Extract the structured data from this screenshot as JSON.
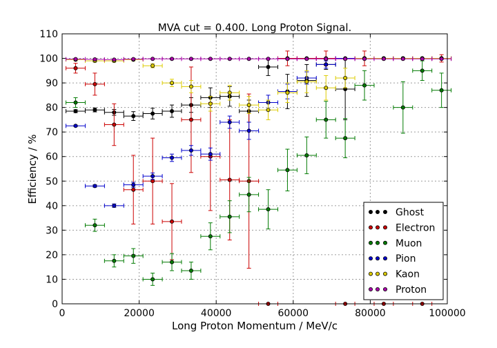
{
  "chart_data": {
    "type": "scatter",
    "title": "MVA cut = 0.400. Long Proton Signal.",
    "xlabel": "Long Proton Momentum / MeV/c",
    "ylabel": "Efficiency / %",
    "xlim": [
      0,
      100000
    ],
    "ylim": [
      0,
      110
    ],
    "x_ticks": [
      "0",
      "20000",
      "40000",
      "60000",
      "80000",
      "100000"
    ],
    "y_ticks": [
      "0",
      "10",
      "20",
      "30",
      "40",
      "50",
      "60",
      "70",
      "80",
      "90",
      "100",
      "110"
    ],
    "grid": true,
    "legend_position": "bottom-right",
    "x_bin_half_width": 2500,
    "series": [
      {
        "name": "Ghost",
        "color": "#000000",
        "points": [
          {
            "x": 3500,
            "y": 78.5,
            "err": 0.6
          },
          {
            "x": 8500,
            "y": 79,
            "err": 0.8
          },
          {
            "x": 13500,
            "y": 78,
            "err": 1.2
          },
          {
            "x": 18500,
            "y": 76.5,
            "err": 1.8
          },
          {
            "x": 23500,
            "y": 77.5,
            "err": 2.2
          },
          {
            "x": 28500,
            "y": 78.5,
            "err": 2.5
          },
          {
            "x": 33500,
            "y": 81,
            "err": 3
          },
          {
            "x": 38500,
            "y": 84,
            "err": 4
          },
          {
            "x": 43500,
            "y": 84.5,
            "err": 4
          },
          {
            "x": 48500,
            "y": 78.5,
            "err": 4.5
          },
          {
            "x": 53500,
            "y": 96.5,
            "err": 3.5
          },
          {
            "x": 58500,
            "y": 86.5,
            "err": 7
          },
          {
            "x": 63500,
            "y": 91,
            "err": 6.5
          },
          {
            "x": 68500,
            "y": 97.5,
            "err": 2
          },
          {
            "x": 73500,
            "y": 87.5,
            "err": 12.5
          },
          {
            "x": 78500,
            "y": 100,
            "err": 0
          },
          {
            "x": 83500,
            "y": 100,
            "err": 0
          },
          {
            "x": 88500,
            "y": 100,
            "err": 0
          },
          {
            "x": 93500,
            "y": 100,
            "err": 0
          },
          {
            "x": 98500,
            "y": 100,
            "err": 0
          }
        ]
      },
      {
        "name": "Electron",
        "color": "#cc0000",
        "points": [
          {
            "x": 3500,
            "y": 96,
            "err": 2
          },
          {
            "x": 8500,
            "y": 89.5,
            "err": 4.5
          },
          {
            "x": 13500,
            "y": 73,
            "err": 8.5
          },
          {
            "x": 18500,
            "y": 46.5,
            "err": 14
          },
          {
            "x": 23500,
            "y": 50,
            "err": 17.5
          },
          {
            "x": 28500,
            "y": 33.5,
            "err": 15.5
          },
          {
            "x": 33500,
            "y": 75,
            "err": 21.5
          },
          {
            "x": 38500,
            "y": 60,
            "err": 22
          },
          {
            "x": 43500,
            "y": 50.5,
            "err": 24.5
          },
          {
            "x": 48500,
            "y": 50,
            "err": 35.5
          },
          {
            "x": 53500,
            "y": 0,
            "err": 0
          },
          {
            "x": 58500,
            "y": 100,
            "err": 3
          },
          {
            "x": 63500,
            "y": 100,
            "err": 0
          },
          {
            "x": 68500,
            "y": 100,
            "err": 3
          },
          {
            "x": 73500,
            "y": 0,
            "err": 0
          },
          {
            "x": 78500,
            "y": 100,
            "err": 3
          },
          {
            "x": 83500,
            "y": 0,
            "err": 0
          },
          {
            "x": 88500,
            "y": 100,
            "err": 0
          },
          {
            "x": 93500,
            "y": 0,
            "err": 0
          },
          {
            "x": 98500,
            "y": 100,
            "err": 1.5
          }
        ]
      },
      {
        "name": "Muon",
        "color": "#007a00",
        "points": [
          {
            "x": 3500,
            "y": 82,
            "err": 2
          },
          {
            "x": 8500,
            "y": 32,
            "err": 2.5
          },
          {
            "x": 13500,
            "y": 17.5,
            "err": 2.5
          },
          {
            "x": 18500,
            "y": 19.5,
            "err": 3
          },
          {
            "x": 23500,
            "y": 10,
            "err": 2.5
          },
          {
            "x": 28500,
            "y": 17,
            "err": 3.5
          },
          {
            "x": 33500,
            "y": 13.5,
            "err": 3.5
          },
          {
            "x": 38500,
            "y": 27.5,
            "err": 5.5
          },
          {
            "x": 43500,
            "y": 35.5,
            "err": 6.5
          },
          {
            "x": 48500,
            "y": 44.5,
            "err": 7
          },
          {
            "x": 53500,
            "y": 38.5,
            "err": 8
          },
          {
            "x": 58500,
            "y": 54.5,
            "err": 8.5
          },
          {
            "x": 63500,
            "y": 60.5,
            "err": 7.5
          },
          {
            "x": 68500,
            "y": 75,
            "err": 7.5
          },
          {
            "x": 73500,
            "y": 67.5,
            "err": 8
          },
          {
            "x": 78500,
            "y": 89,
            "err": 6
          },
          {
            "x": 88500,
            "y": 80,
            "err": 10.5
          },
          {
            "x": 93500,
            "y": 95,
            "err": 4
          },
          {
            "x": 98500,
            "y": 87,
            "err": 7
          }
        ]
      },
      {
        "name": "Pion",
        "color": "#0000cc",
        "points": [
          {
            "x": 3500,
            "y": 72.5,
            "err": 0.3
          },
          {
            "x": 8500,
            "y": 48,
            "err": 0.5
          },
          {
            "x": 13500,
            "y": 40,
            "err": 0.7
          },
          {
            "x": 18500,
            "y": 48.5,
            "err": 1
          },
          {
            "x": 23500,
            "y": 52,
            "err": 1.3
          },
          {
            "x": 28500,
            "y": 59.5,
            "err": 1.5
          },
          {
            "x": 33500,
            "y": 62.5,
            "err": 2
          },
          {
            "x": 38500,
            "y": 61,
            "err": 2.5
          },
          {
            "x": 43500,
            "y": 74,
            "err": 2.5
          },
          {
            "x": 48500,
            "y": 70.5,
            "err": 3.5
          },
          {
            "x": 53500,
            "y": 82,
            "err": 3
          },
          {
            "x": 58500,
            "y": 86.5,
            "err": 3
          },
          {
            "x": 63500,
            "y": 92,
            "err": 2.5
          },
          {
            "x": 68500,
            "y": 97.5,
            "err": 1.5
          },
          {
            "x": 73500,
            "y": 100,
            "err": 0
          },
          {
            "x": 78500,
            "y": 100,
            "err": 0
          },
          {
            "x": 83500,
            "y": 100,
            "err": 0
          },
          {
            "x": 88500,
            "y": 100,
            "err": 0
          },
          {
            "x": 93500,
            "y": 100,
            "err": 0
          },
          {
            "x": 98500,
            "y": 100,
            "err": 0
          }
        ]
      },
      {
        "name": "Kaon",
        "color": "#ddcc00",
        "points": [
          {
            "x": 3500,
            "y": 99.5,
            "err": 0.5
          },
          {
            "x": 8500,
            "y": 99,
            "err": 0.5
          },
          {
            "x": 13500,
            "y": 99,
            "err": 0.5
          },
          {
            "x": 18500,
            "y": 99.5,
            "err": 0.5
          },
          {
            "x": 23500,
            "y": 97,
            "err": 0.8
          },
          {
            "x": 28500,
            "y": 90,
            "err": 1.5
          },
          {
            "x": 33500,
            "y": 88.5,
            "err": 2.5
          },
          {
            "x": 38500,
            "y": 81.5,
            "err": 3
          },
          {
            "x": 43500,
            "y": 86,
            "err": 3
          },
          {
            "x": 48500,
            "y": 81,
            "err": 3.5
          },
          {
            "x": 53500,
            "y": 79,
            "err": 4
          },
          {
            "x": 58500,
            "y": 86,
            "err": 4
          },
          {
            "x": 63500,
            "y": 90.5,
            "err": 4.5
          },
          {
            "x": 68500,
            "y": 88,
            "err": 5
          },
          {
            "x": 73500,
            "y": 92,
            "err": 4
          },
          {
            "x": 78500,
            "y": 100,
            "err": 0
          },
          {
            "x": 83500,
            "y": 100,
            "err": 0
          },
          {
            "x": 88500,
            "y": 100,
            "err": 0
          },
          {
            "x": 93500,
            "y": 100,
            "err": 0
          },
          {
            "x": 98500,
            "y": 100,
            "err": 0
          }
        ]
      },
      {
        "name": "Proton",
        "color": "#aa00aa",
        "points": [
          {
            "x": 3500,
            "y": 99.7,
            "err": 0.2
          },
          {
            "x": 8500,
            "y": 99.6,
            "err": 0.2
          },
          {
            "x": 13500,
            "y": 99.5,
            "err": 0.2
          },
          {
            "x": 18500,
            "y": 99.7,
            "err": 0.2
          },
          {
            "x": 23500,
            "y": 99.8,
            "err": 0.2
          },
          {
            "x": 28500,
            "y": 99.8,
            "err": 0.2
          },
          {
            "x": 33500,
            "y": 99.8,
            "err": 0.2
          },
          {
            "x": 38500,
            "y": 99.8,
            "err": 0.2
          },
          {
            "x": 43500,
            "y": 99.8,
            "err": 0.2
          },
          {
            "x": 48500,
            "y": 99.8,
            "err": 0.2
          },
          {
            "x": 53500,
            "y": 99.8,
            "err": 0.2
          },
          {
            "x": 58500,
            "y": 99.8,
            "err": 0.2
          },
          {
            "x": 63500,
            "y": 99.8,
            "err": 0.2
          },
          {
            "x": 68500,
            "y": 99.8,
            "err": 0.2
          },
          {
            "x": 73500,
            "y": 99.8,
            "err": 0.2
          },
          {
            "x": 78500,
            "y": 99.8,
            "err": 0.2
          },
          {
            "x": 83500,
            "y": 99.8,
            "err": 0.2
          },
          {
            "x": 88500,
            "y": 99.8,
            "err": 0.2
          },
          {
            "x": 93500,
            "y": 99.8,
            "err": 0.2
          },
          {
            "x": 98500,
            "y": 99.8,
            "err": 0.2
          }
        ]
      }
    ]
  }
}
